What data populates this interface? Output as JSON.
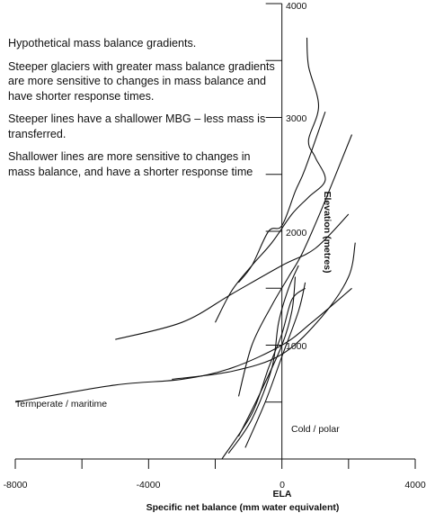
{
  "notes": [
    "Hypothetical mass balance gradients.",
    "Steeper glaciers with greater mass balance gradients are more sensitive to changes in mass balance and have shorter response times.",
    "Steeper lines have a shallower MBG – less mass is transferred.",
    "Shallower lines are more sensitive to changes in mass balance, and have a shorter response time"
  ],
  "chart_data": {
    "type": "line",
    "title": "",
    "xlabel": "Specific net balance (mm water equivalent)",
    "ylabel": "Elevation (metres)",
    "xlim": [
      -8000,
      4000
    ],
    "ylim": [
      0,
      4000
    ],
    "x_ticks": [
      -8000,
      -6000,
      -4000,
      -2000,
      0,
      2000,
      4000
    ],
    "x_tick_labels": [
      "-8000",
      "-4000",
      "0",
      "4000"
    ],
    "y_ticks": [
      500,
      1000,
      1500,
      2000,
      2500,
      3000,
      3500,
      4000
    ],
    "y_tick_labels": [
      "1000",
      "2000",
      "3000",
      "4000"
    ],
    "ela_label": "ELA",
    "annotations": [
      "Termperate / maritime",
      "Cold / polar"
    ],
    "grid": false,
    "series": [
      {
        "points": [
          [
            -2000,
            1200
          ],
          [
            -1500,
            1480
          ],
          [
            -900,
            1700
          ],
          [
            -300,
            1900
          ],
          [
            300,
            2150
          ],
          [
            800,
            2300
          ],
          [
            1300,
            2450
          ],
          [
            1000,
            2650
          ],
          [
            800,
            2800
          ],
          [
            1100,
            3100
          ],
          [
            800,
            3450
          ],
          [
            750,
            3700
          ]
        ]
      },
      {
        "points": [
          [
            -1300,
            1550
          ],
          [
            -900,
            1700
          ],
          [
            -400,
            2000
          ],
          [
            0,
            2050
          ],
          [
            400,
            2350
          ],
          [
            700,
            2550
          ],
          [
            1300,
            3050
          ]
        ]
      },
      {
        "points": [
          [
            -1300,
            550
          ],
          [
            -900,
            1000
          ],
          [
            -300,
            1350
          ],
          [
            200,
            1600
          ],
          [
            600,
            1800
          ],
          [
            1200,
            2200
          ],
          [
            2100,
            2850
          ]
        ]
      },
      {
        "points": [
          [
            -5000,
            1050
          ],
          [
            -3000,
            1200
          ],
          [
            -1500,
            1450
          ],
          [
            0,
            1700
          ],
          [
            1000,
            1850
          ],
          [
            2000,
            2150
          ]
        ]
      },
      {
        "points": [
          [
            -3300,
            700
          ],
          [
            -1500,
            770
          ],
          [
            0,
            920
          ],
          [
            1200,
            1250
          ],
          [
            2000,
            1600
          ],
          [
            2200,
            1900
          ]
        ]
      },
      {
        "points": [
          [
            -8000,
            500
          ],
          [
            -5000,
            650
          ],
          [
            -3000,
            700
          ],
          [
            -1500,
            800
          ],
          [
            0,
            1000
          ],
          [
            900,
            1200
          ],
          [
            2100,
            1500
          ]
        ]
      },
      {
        "points": [
          [
            -1300,
            200
          ],
          [
            -700,
            550
          ],
          [
            0,
            1000
          ],
          [
            300,
            1300
          ],
          [
            400,
            1600
          ]
        ]
      },
      {
        "points": [
          [
            -1100,
            100
          ],
          [
            -500,
            500
          ],
          [
            0,
            900
          ],
          [
            500,
            1300
          ],
          [
            700,
            1550
          ]
        ]
      },
      {
        "points": [
          [
            -1800,
            0
          ],
          [
            -900,
            400
          ],
          [
            -400,
            800
          ],
          [
            0,
            1100
          ],
          [
            300,
            1400
          ],
          [
            700,
            1500
          ]
        ]
      },
      {
        "points": [
          [
            -1600,
            50
          ],
          [
            -900,
            350
          ],
          [
            -300,
            800
          ],
          [
            -100,
            1200
          ],
          [
            200,
            1500
          ],
          [
            500,
            1700
          ]
        ]
      }
    ]
  }
}
